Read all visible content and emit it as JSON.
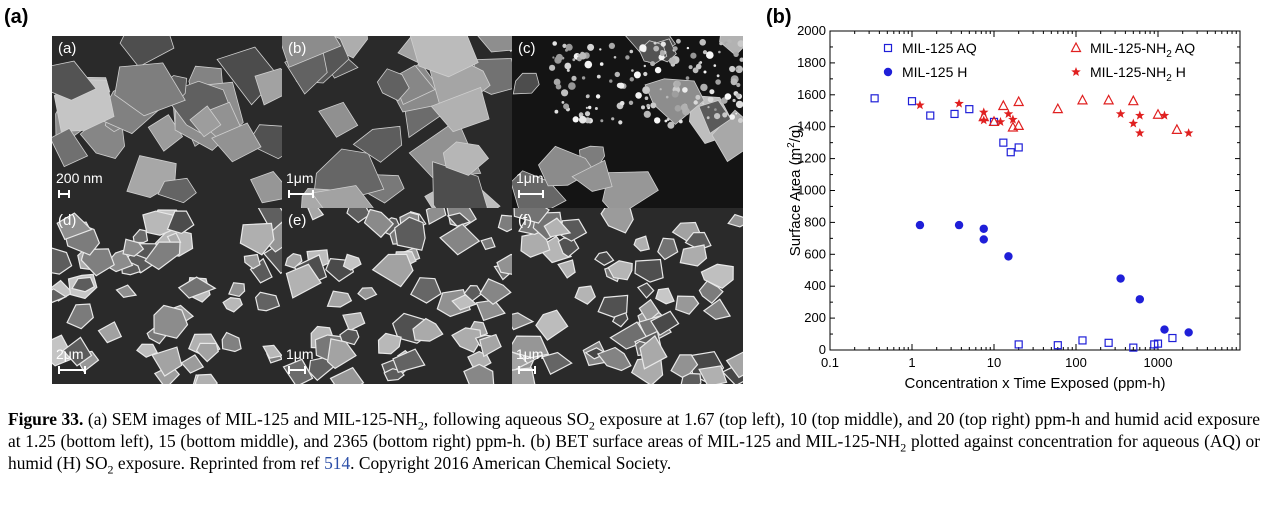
{
  "panel_a_label": "(a)",
  "panel_b_label": "(b)",
  "sem_tiles": [
    {
      "letter": "(a)",
      "scale": "200 nm"
    },
    {
      "letter": "(b)",
      "scale": "1μm"
    },
    {
      "letter": "(c)",
      "scale": "1μm"
    },
    {
      "letter": "(d)",
      "scale": "2μm"
    },
    {
      "letter": "(e)",
      "scale": "1μm"
    },
    {
      "letter": "(f)",
      "scale": "1μm"
    }
  ],
  "colors": {
    "blue": "#1f1fd8",
    "red": "#e02020"
  },
  "chart_data": {
    "type": "scatter",
    "x_scale": "log",
    "xlim": [
      0.1,
      10000
    ],
    "ylim": [
      0,
      2000
    ],
    "x_ticks": [
      "0.1",
      "1",
      "10",
      "100",
      "1000"
    ],
    "y_ticks": [
      "0",
      "200",
      "400",
      "600",
      "800",
      "1000",
      "1200",
      "1400",
      "1600",
      "1800",
      "2000"
    ],
    "xlabel": "Concentration x Time Exposed (ppm-h)",
    "ylabel_main": "Surface Area (m",
    "ylabel_sup": "2",
    "ylabel_end": "/g)",
    "legend_placement": "top",
    "grid": false,
    "series": [
      {
        "name": "MIL-125 AQ",
        "marker": "open-square",
        "color": "#1f1fd8",
        "points": [
          [
            0.35,
            1578
          ],
          [
            1.0,
            1560
          ],
          [
            1.67,
            1470
          ],
          [
            3.3,
            1480
          ],
          [
            5.0,
            1510
          ],
          [
            10,
            1430
          ],
          [
            13,
            1300
          ],
          [
            16,
            1240
          ],
          [
            20,
            1270
          ],
          [
            20,
            35
          ],
          [
            60,
            30
          ],
          [
            120,
            60
          ],
          [
            250,
            45
          ],
          [
            500,
            15
          ],
          [
            900,
            35
          ],
          [
            1000,
            40
          ],
          [
            1500,
            75
          ]
        ]
      },
      {
        "name": "MIL-125 H",
        "marker": "filled-circle",
        "color": "#1f1fd8",
        "points": [
          [
            1.25,
            783
          ],
          [
            3.75,
            783
          ],
          [
            7.5,
            760
          ],
          [
            7.5,
            693
          ],
          [
            15,
            587
          ],
          [
            350,
            448
          ],
          [
            600,
            318
          ],
          [
            1200,
            128
          ],
          [
            2365,
            110
          ]
        ]
      },
      {
        "name_main": "MIL-125-NH",
        "name_sub": "2",
        "name_end": " AQ",
        "marker": "open-triangle",
        "color": "#e02020",
        "points": [
          [
            7.5,
            1460
          ],
          [
            10,
            1430
          ],
          [
            13,
            1530
          ],
          [
            17,
            1395
          ],
          [
            20,
            1555
          ],
          [
            20,
            1405
          ],
          [
            60,
            1510
          ],
          [
            120,
            1565
          ],
          [
            250,
            1565
          ],
          [
            500,
            1560
          ],
          [
            1000,
            1475
          ],
          [
            1700,
            1380
          ]
        ]
      },
      {
        "name_main": "MIL-125-NH",
        "name_sub": "2",
        "name_end": " H",
        "marker": "filled-star",
        "color": "#e02020",
        "points": [
          [
            1.25,
            1535
          ],
          [
            3.75,
            1545
          ],
          [
            7.5,
            1490
          ],
          [
            7.5,
            1440
          ],
          [
            12,
            1430
          ],
          [
            15,
            1480
          ],
          [
            17,
            1445
          ],
          [
            350,
            1480
          ],
          [
            500,
            1420
          ],
          [
            600,
            1470
          ],
          [
            600,
            1360
          ],
          [
            1200,
            1470
          ],
          [
            2365,
            1360
          ]
        ]
      }
    ]
  },
  "caption": {
    "label": "Figure 33.",
    "t1": " (a) SEM images of MIL-125 and MIL-125-NH",
    "t1_sub": "2",
    "t2": ", following aqueous SO",
    "t2_sub": "2",
    "t3": " exposure at 1.67 (top left), 10 (top middle), and 20 (top right) ppm-h and humid acid exposure at 1.25 (bottom left), 15 (bottom middle), and 2365 (bottom right) ppm-h. (b) BET surface areas of MIL-125 and MIL-125-NH",
    "t3_sub": "2",
    "t4": " plotted against concentration for aqueous (AQ) or humid (H) SO",
    "t4_sub": "2",
    "t5": " exposure. Reprinted from ref ",
    "ref": "514",
    "t6": ". Copyright 2016 American Chemical Society."
  }
}
